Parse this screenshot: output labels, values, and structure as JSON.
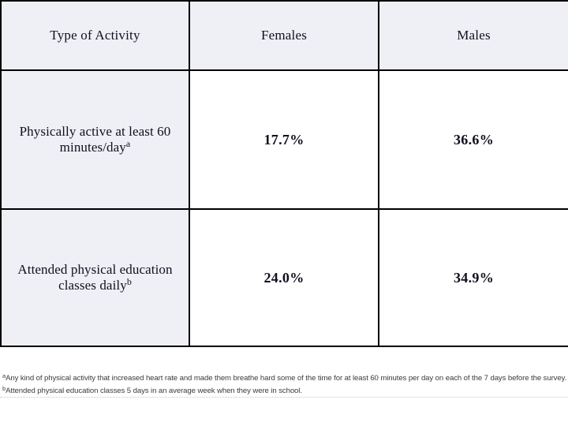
{
  "colors": {
    "header_and_label_cell_bg": "#efeff6",
    "data_cell_bg": "#ffffff",
    "table_border": "#000000",
    "table_text": "#10101f",
    "footnote_text": "#3b3b3b",
    "footnote_rule": "#c9c9c9"
  },
  "table": {
    "headers": [
      "Type of Activity",
      "Females",
      "Males"
    ],
    "rows": [
      {
        "label": "Physically active at least 60 minutes/day",
        "sup": "a",
        "females": "17.7%",
        "males": "36.6%"
      },
      {
        "label": "Attended physical education classes daily",
        "sup": "b",
        "females": "24.0%",
        "males": "34.9%"
      }
    ]
  },
  "footnotes": [
    {
      "sup": "a",
      "text": "Any kind of physical activity that increased heart rate and made them breathe hard some of the time for at least 60 minutes per day on each of the 7 days before the survey."
    },
    {
      "sup": "b",
      "text": "Attended physical education classes 5 days in an average week when they were in school."
    }
  ],
  "chart_data": {
    "type": "table",
    "title": "",
    "columns": [
      "Type of Activity",
      "Females",
      "Males"
    ],
    "rows": [
      [
        "Physically active at least 60 minutes/day [a]",
        "17.7%",
        "36.6%"
      ],
      [
        "Attended physical education classes daily [b]",
        "24.0%",
        "34.9%"
      ]
    ],
    "footnotes": [
      "[a] Any kind of physical activity that increased heart rate and made them breathe hard some of the time for at least 60 minutes per day on each of the 7 days before the survey.",
      "[b] Attended physical education classes 5 days in an average week when they were in school."
    ],
    "values_numeric": {
      "categories": [
        "Physically active at least 60 minutes/day",
        "Attended physical education classes daily"
      ],
      "series": [
        {
          "name": "Females",
          "values": [
            17.7,
            24.0
          ]
        },
        {
          "name": "Males",
          "values": [
            36.6,
            34.9
          ]
        }
      ],
      "unit": "%"
    }
  }
}
